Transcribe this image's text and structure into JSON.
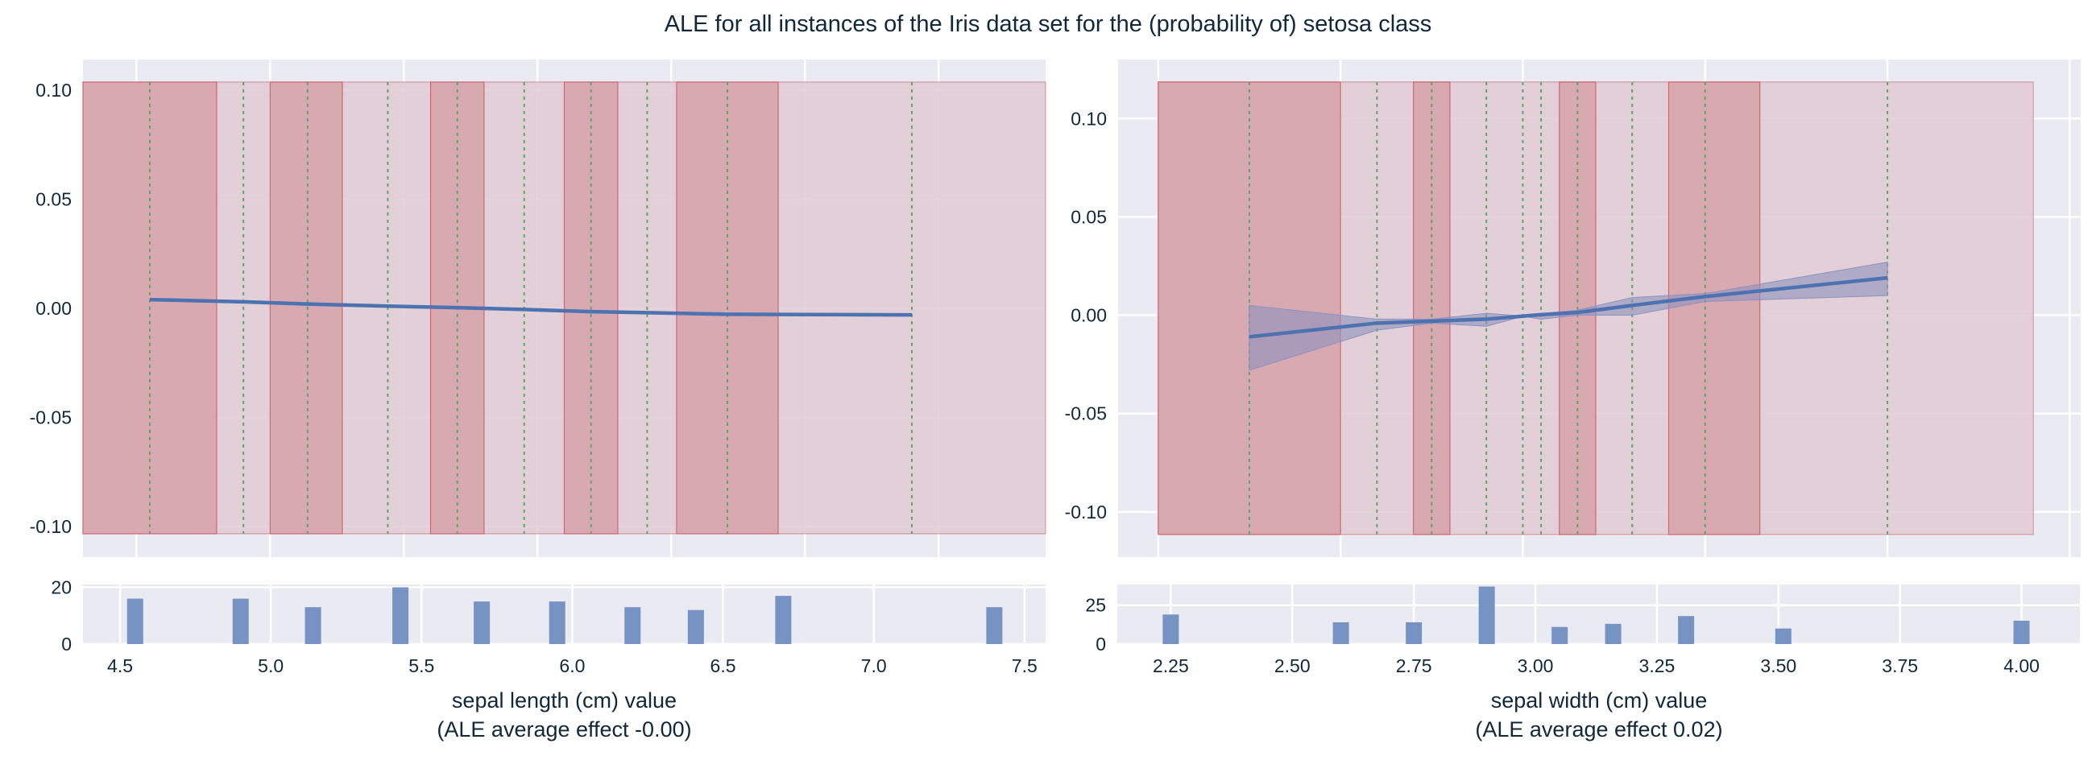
{
  "title": "ALE for all instances of the Iris data set for the (probability of) setosa class",
  "colors": {
    "background": "#eaeaf2",
    "grid": "#ffffff",
    "ale_line": "#4c72b0",
    "confidence_band": "#8d93bd",
    "bin_dark": "#d9a9b2",
    "bin_light": "#e1cad3",
    "bin_edge": "#c9545e",
    "grid_points": "#55a868",
    "histogram": "#7793c4",
    "text": "#10283a"
  },
  "chart_data": [
    {
      "type": "line",
      "panel": "sepal-length-ale",
      "xlabel": "sepal length (cm) value",
      "xlabel_sub": "(ALE average effect -0.00)",
      "ylabel": "",
      "xlim": [
        4.3,
        7.9
      ],
      "ylim": [
        -0.114,
        0.114
      ],
      "yticks": [
        0.1,
        0.05,
        0.0,
        -0.05,
        -0.1
      ],
      "ytick_labels": [
        "0.10",
        "0.05",
        "0.00",
        "-0.05",
        "-0.10"
      ],
      "grid": true,
      "x": [
        4.55,
        4.9,
        5.14,
        5.44,
        5.7,
        5.95,
        6.2,
        6.41,
        6.71,
        7.4
      ],
      "y": [
        0.004,
        0.003,
        0.002,
        0.001,
        0.0003,
        -0.0005,
        -0.0015,
        -0.002,
        -0.0027,
        -0.003
      ],
      "bins_range": [
        4.3,
        7.9
      ],
      "bins_dark": [
        [
          4.3,
          4.8
        ],
        [
          5.0,
          5.27
        ],
        [
          5.6,
          5.8
        ],
        [
          6.1,
          6.3
        ],
        [
          6.52,
          6.9
        ]
      ],
      "band_ylim": [
        -0.1033,
        0.1037
      ]
    },
    {
      "type": "bar",
      "panel": "sepal-length-histogram",
      "xlim": [
        4.377,
        7.57
      ],
      "ylim": [
        0,
        21
      ],
      "xticks": [
        4.5,
        5.0,
        5.5,
        6.0,
        6.5,
        7.0,
        7.5
      ],
      "xtick_labels": [
        "4.5",
        "5.0",
        "5.5",
        "6.0",
        "6.5",
        "7.0",
        "7.5"
      ],
      "yticks": [
        0,
        20
      ],
      "ytick_labels": [
        "0",
        "20"
      ],
      "x": [
        4.55,
        4.9,
        5.14,
        5.43,
        5.7,
        5.95,
        6.2,
        6.41,
        6.7,
        7.4
      ],
      "values": [
        16,
        16,
        13,
        20,
        15,
        15,
        13,
        12,
        17,
        13
      ]
    },
    {
      "type": "line",
      "panel": "sepal-width-ale",
      "xlabel": "sepal width (cm) value",
      "xlabel_sub": "(ALE average effect 0.02)",
      "ylabel": "",
      "xlim": [
        1.89,
        4.53
      ],
      "ylim": [
        -0.123,
        0.13
      ],
      "yticks": [
        0.1,
        0.05,
        0.0,
        -0.05,
        -0.1
      ],
      "ytick_labels": [
        "0.10",
        "0.05",
        "0.00",
        "-0.05",
        "-0.10"
      ],
      "grid": true,
      "x": [
        2.25,
        2.6,
        2.75,
        2.9,
        3.0,
        3.05,
        3.15,
        3.3,
        3.5,
        4.0
      ],
      "y": [
        -0.011,
        -0.004,
        -0.003,
        -0.002,
        -0.0005,
        0.0003,
        0.0014,
        0.005,
        0.0095,
        0.019
      ],
      "y_lower": [
        -0.028,
        -0.0076,
        -0.004,
        -0.0056,
        -0.0006,
        -0.002,
        0.0,
        0.0,
        0.007,
        0.01
      ],
      "y_upper": [
        0.005,
        -0.002,
        -0.002,
        0.001,
        -0.0004,
        0.0008,
        0.0026,
        0.009,
        0.011,
        0.027
      ],
      "bins_range": [
        2.0,
        4.4
      ],
      "bins_dark": [
        [
          2.0,
          2.5
        ],
        [
          2.7,
          2.8
        ],
        [
          3.1,
          3.2
        ],
        [
          3.4,
          3.65
        ]
      ],
      "band_ylim": [
        -0.1115,
        0.1186
      ]
    },
    {
      "type": "bar",
      "panel": "sepal-width-histogram",
      "xlim": [
        2.14,
        4.12
      ],
      "ylim": [
        0,
        38.3
      ],
      "xticks": [
        2.25,
        2.5,
        2.75,
        3.0,
        3.25,
        3.5,
        3.75,
        4.0
      ],
      "xtick_labels": [
        "2.25",
        "2.50",
        "2.75",
        "3.00",
        "3.25",
        "3.50",
        "3.75",
        "4.00"
      ],
      "yticks": [
        0,
        25
      ],
      "ytick_labels": [
        "0",
        "25"
      ],
      "x": [
        2.25,
        2.6,
        2.75,
        2.9,
        3.05,
        3.16,
        3.31,
        3.51,
        4.0
      ],
      "values": [
        19,
        14,
        14,
        37,
        11,
        13,
        18,
        10,
        15
      ]
    }
  ]
}
